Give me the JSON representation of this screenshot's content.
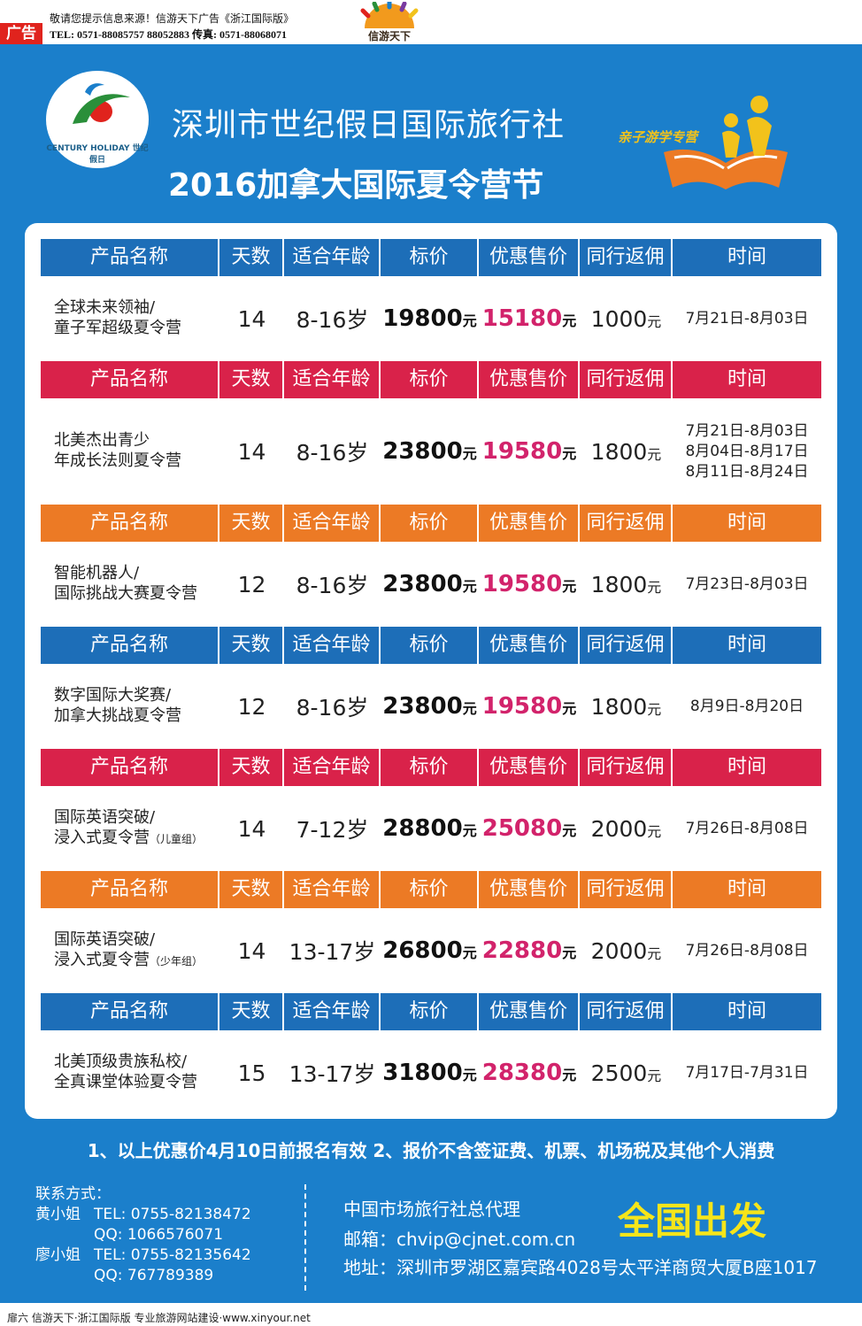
{
  "top_bar": {
    "ad_tag": "广告",
    "notice": "敬请您提示信息来源！信游天下广告《浙江国际版》",
    "tel_line": "TEL: 0571-88085757  88052883  传真: 0571-88068071",
    "logo_text": "信游天下"
  },
  "header": {
    "logo_text": "CENTURY HOLIDAY 世纪假日",
    "company": "深圳市世纪假日国际旅行社",
    "event": "2016加拿大国际夏令营节",
    "badge": "亲子游学专营"
  },
  "table": {
    "columns": [
      "产品名称",
      "天数",
      "适合年龄",
      "标价",
      "优惠售价",
      "同行返佣",
      "时间"
    ],
    "unit": "元",
    "rows": [
      {
        "name_line1": "全球未来领袖/",
        "name_line2": "童子军超级夏令营",
        "name_suffix": "",
        "days": "14",
        "age": "8-16岁",
        "list_price": "19800",
        "sale_price": "15180",
        "commission": "1000",
        "dates": [
          "7月21日-8月03日"
        ]
      },
      {
        "name_line1": "北美杰出青少",
        "name_line2": "年成长法则夏令营",
        "name_suffix": "",
        "days": "14",
        "age": "8-16岁",
        "list_price": "23800",
        "sale_price": "19580",
        "commission": "1800",
        "dates": [
          "7月21日-8月03日",
          "8月04日-8月17日",
          "8月11日-8月24日"
        ]
      },
      {
        "name_line1": "智能机器人/",
        "name_line2": "国际挑战大赛夏令营",
        "name_suffix": "",
        "days": "12",
        "age": "8-16岁",
        "list_price": "23800",
        "sale_price": "19580",
        "commission": "1800",
        "dates": [
          "7月23日-8月03日"
        ]
      },
      {
        "name_line1": "数字国际大奖赛/",
        "name_line2": "加拿大挑战夏令营",
        "name_suffix": "",
        "days": "12",
        "age": "8-16岁",
        "list_price": "23800",
        "sale_price": "19580",
        "commission": "1800",
        "dates": [
          "8月9日-8月20日"
        ]
      },
      {
        "name_line1": "国际英语突破/",
        "name_line2": "浸入式夏令营",
        "name_suffix": "（儿童组）",
        "days": "14",
        "age": "7-12岁",
        "list_price": "28800",
        "sale_price": "25080",
        "commission": "2000",
        "dates": [
          "7月26日-8月08日"
        ]
      },
      {
        "name_line1": "国际英语突破/",
        "name_line2": "浸入式夏令营",
        "name_suffix": "（少年组）",
        "days": "14",
        "age": "13-17岁",
        "list_price": "26800",
        "sale_price": "22880",
        "commission": "2000",
        "dates": [
          "7月26日-8月08日"
        ]
      },
      {
        "name_line1": "北美顶级贵族私校/",
        "name_line2": "全真课堂体验夏令营",
        "name_suffix": "",
        "days": "15",
        "age": "13-17岁",
        "list_price": "31800",
        "sale_price": "28380",
        "commission": "2500",
        "dates": [
          "7月17日-7月31日"
        ]
      }
    ],
    "header_colors": [
      "#1d6eb8",
      "#d9224a",
      "#ec7a25",
      "#1d6eb8",
      "#d9224a",
      "#ec7a25",
      "#1d6eb8"
    ]
  },
  "notes": "1、以上优惠价4月10日前报名有效   2、报价不含签证费、机票、机场税及其他个人消费",
  "contact": {
    "label": "联系方式：",
    "person1": "黄小姐",
    "tel_label": "TEL:",
    "qq_label": "QQ:",
    "person1_tel": "0755-82138472",
    "person1_qq": "1066576071",
    "person2": "廖小姐",
    "person2_tel": "0755-82135642",
    "person2_qq": "767789389"
  },
  "agency": {
    "agent": "中国市场旅行社总代理",
    "email": "邮箱：chvip@cjnet.com.cn",
    "address": "地址：深圳市罗湖区嘉宾路4028号太平洋商贸大厦B座1017",
    "departure": "全国出发"
  },
  "footer": "扉六    信游天下·浙江国际版    专业旅游网站建设·www.xinyour.net"
}
